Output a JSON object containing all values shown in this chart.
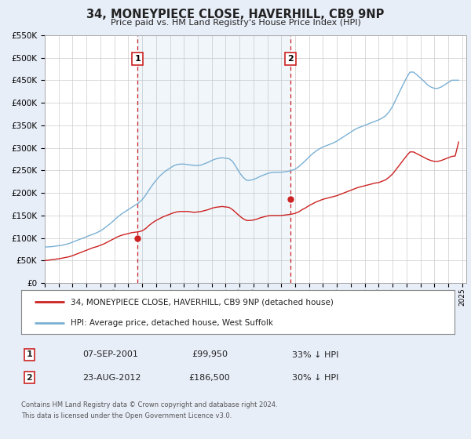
{
  "title": "34, MONEYPIECE CLOSE, HAVERHILL, CB9 9NP",
  "subtitle": "Price paid vs. HM Land Registry's House Price Index (HPI)",
  "legend_line1": "34, MONEYPIECE CLOSE, HAVERHILL, CB9 9NP (detached house)",
  "legend_line2": "HPI: Average price, detached house, West Suffolk",
  "footer1": "Contains HM Land Registry data © Crown copyright and database right 2024.",
  "footer2": "This data is licensed under the Open Government Licence v3.0.",
  "sale1_date": "07-SEP-2001",
  "sale1_price": "£99,950",
  "sale1_pct": "33% ↓ HPI",
  "sale1_year": 2001.68,
  "sale1_value": 99950,
  "sale2_date": "23-AUG-2012",
  "sale2_price": "£186,500",
  "sale2_pct": "30% ↓ HPI",
  "sale2_year": 2012.64,
  "sale2_value": 186500,
  "red_color": "#cc2222",
  "blue_color": "#7ab0d4",
  "bg_color": "#e8eef8",
  "plot_bg": "#ffffff",
  "grid_color": "#cccccc",
  "ylim_max": 550000,
  "xlim_start": 1995.0,
  "xlim_end": 2025.3,
  "hpi_x": [
    1995.0,
    1995.25,
    1995.5,
    1995.75,
    1996.0,
    1996.25,
    1996.5,
    1996.75,
    1997.0,
    1997.25,
    1997.5,
    1997.75,
    1998.0,
    1998.25,
    1998.5,
    1998.75,
    1999.0,
    1999.25,
    1999.5,
    1999.75,
    2000.0,
    2000.25,
    2000.5,
    2000.75,
    2001.0,
    2001.25,
    2001.5,
    2001.75,
    2002.0,
    2002.25,
    2002.5,
    2002.75,
    2003.0,
    2003.25,
    2003.5,
    2003.75,
    2004.0,
    2004.25,
    2004.5,
    2004.75,
    2005.0,
    2005.25,
    2005.5,
    2005.75,
    2006.0,
    2006.25,
    2006.5,
    2006.75,
    2007.0,
    2007.25,
    2007.5,
    2007.75,
    2008.0,
    2008.25,
    2008.5,
    2008.75,
    2009.0,
    2009.25,
    2009.5,
    2009.75,
    2010.0,
    2010.25,
    2010.5,
    2010.75,
    2011.0,
    2011.25,
    2011.5,
    2011.75,
    2012.0,
    2012.25,
    2012.5,
    2012.75,
    2013.0,
    2013.25,
    2013.5,
    2013.75,
    2014.0,
    2014.25,
    2014.5,
    2014.75,
    2015.0,
    2015.25,
    2015.5,
    2015.75,
    2016.0,
    2016.25,
    2016.5,
    2016.75,
    2017.0,
    2017.25,
    2017.5,
    2017.75,
    2018.0,
    2018.25,
    2018.5,
    2018.75,
    2019.0,
    2019.25,
    2019.5,
    2019.75,
    2020.0,
    2020.25,
    2020.5,
    2020.75,
    2021.0,
    2021.25,
    2021.5,
    2021.75,
    2022.0,
    2022.25,
    2022.5,
    2022.75,
    2023.0,
    2023.25,
    2023.5,
    2023.75,
    2024.0,
    2024.25,
    2024.5,
    2024.75
  ],
  "hpi_y": [
    80000,
    80500,
    81000,
    82000,
    83000,
    84000,
    86000,
    88000,
    91000,
    94000,
    97000,
    100000,
    103000,
    106000,
    109000,
    112000,
    116000,
    121000,
    127000,
    133000,
    140000,
    147000,
    153000,
    158000,
    163000,
    168000,
    173000,
    178000,
    185000,
    195000,
    207000,
    218000,
    228000,
    237000,
    244000,
    250000,
    255000,
    260000,
    263000,
    264000,
    264000,
    263000,
    262000,
    261000,
    261000,
    262000,
    265000,
    268000,
    272000,
    275000,
    277000,
    278000,
    277000,
    276000,
    270000,
    258000,
    245000,
    235000,
    228000,
    228000,
    230000,
    233000,
    237000,
    240000,
    243000,
    245000,
    246000,
    246000,
    246000,
    247000,
    248000,
    250000,
    253000,
    258000,
    265000,
    272000,
    280000,
    287000,
    293000,
    298000,
    302000,
    305000,
    308000,
    311000,
    315000,
    320000,
    325000,
    330000,
    335000,
    340000,
    344000,
    347000,
    350000,
    353000,
    356000,
    359000,
    362000,
    366000,
    371000,
    380000,
    392000,
    408000,
    424000,
    440000,
    455000,
    468000,
    468000,
    462000,
    455000,
    448000,
    440000,
    435000,
    432000,
    432000,
    435000,
    440000,
    445000,
    450000,
    450000,
    450000
  ],
  "red_x": [
    1995.0,
    1995.25,
    1995.5,
    1995.75,
    1996.0,
    1996.25,
    1996.5,
    1996.75,
    1997.0,
    1997.25,
    1997.5,
    1997.75,
    1998.0,
    1998.25,
    1998.5,
    1998.75,
    1999.0,
    1999.25,
    1999.5,
    1999.75,
    2000.0,
    2000.25,
    2000.5,
    2000.75,
    2001.0,
    2001.25,
    2001.5,
    2001.75,
    2002.0,
    2002.25,
    2002.5,
    2002.75,
    2003.0,
    2003.25,
    2003.5,
    2003.75,
    2004.0,
    2004.25,
    2004.5,
    2004.75,
    2005.0,
    2005.25,
    2005.5,
    2005.75,
    2006.0,
    2006.25,
    2006.5,
    2006.75,
    2007.0,
    2007.25,
    2007.5,
    2007.75,
    2008.0,
    2008.25,
    2008.5,
    2008.75,
    2009.0,
    2009.25,
    2009.5,
    2009.75,
    2010.0,
    2010.25,
    2010.5,
    2010.75,
    2011.0,
    2011.25,
    2011.5,
    2011.75,
    2012.0,
    2012.25,
    2012.5,
    2012.75,
    2013.0,
    2013.25,
    2013.5,
    2013.75,
    2014.0,
    2014.25,
    2014.5,
    2014.75,
    2015.0,
    2015.25,
    2015.5,
    2015.75,
    2016.0,
    2016.25,
    2016.5,
    2016.75,
    2017.0,
    2017.25,
    2017.5,
    2017.75,
    2018.0,
    2018.25,
    2018.5,
    2018.75,
    2019.0,
    2019.25,
    2019.5,
    2019.75,
    2020.0,
    2020.25,
    2020.5,
    2020.75,
    2021.0,
    2021.25,
    2021.5,
    2021.75,
    2022.0,
    2022.25,
    2022.5,
    2022.75,
    2023.0,
    2023.25,
    2023.5,
    2023.75,
    2024.0,
    2024.25,
    2024.5,
    2024.75
  ],
  "red_y": [
    50000,
    51000,
    52000,
    53000,
    54000,
    55500,
    57000,
    58500,
    61000,
    64000,
    67000,
    70000,
    73000,
    76000,
    79000,
    81000,
    84000,
    87000,
    91000,
    95000,
    99000,
    103000,
    106000,
    108000,
    110000,
    112000,
    113000,
    114000,
    116000,
    121000,
    128000,
    134000,
    139000,
    143000,
    147000,
    150000,
    153000,
    156000,
    158000,
    159000,
    159000,
    159000,
    158000,
    157000,
    158000,
    159000,
    161000,
    163000,
    166000,
    168000,
    169000,
    170000,
    169000,
    168000,
    163000,
    156000,
    149000,
    143000,
    139000,
    139000,
    140000,
    142000,
    145000,
    147000,
    149000,
    150000,
    150000,
    150000,
    150000,
    151000,
    152000,
    153000,
    155000,
    158000,
    163000,
    167000,
    172000,
    176000,
    180000,
    183000,
    186000,
    188000,
    190000,
    192000,
    194000,
    197000,
    200000,
    203000,
    206000,
    209000,
    212000,
    214000,
    216000,
    218000,
    220000,
    222000,
    223000,
    226000,
    229000,
    235000,
    242000,
    252000,
    262000,
    272000,
    282000,
    291000,
    291000,
    287000,
    283000,
    279000,
    275000,
    272000,
    270000,
    270000,
    272000,
    275000,
    278000,
    281000,
    282000,
    313000
  ]
}
